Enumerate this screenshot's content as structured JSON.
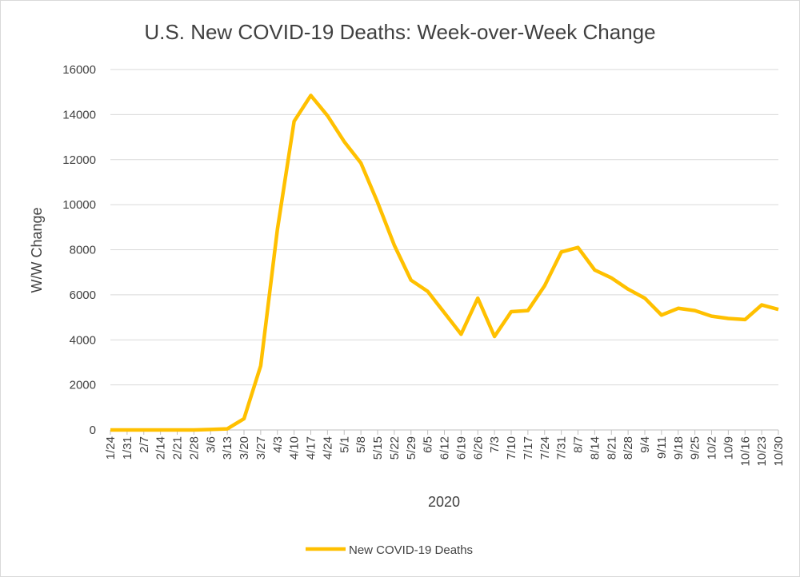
{
  "chart_data": {
    "type": "line",
    "title": "U.S. New COVID-19 Deaths: Week-over-Week Change",
    "x_label": "2020",
    "y_label": "W/W Change",
    "categories": [
      "1/24",
      "1/31",
      "2/7",
      "2/14",
      "2/21",
      "2/28",
      "3/6",
      "3/13",
      "3/20",
      "3/27",
      "4/3",
      "4/10",
      "4/17",
      "4/24",
      "5/1",
      "5/8",
      "5/15",
      "5/22",
      "5/29",
      "6/5",
      "6/12",
      "6/19",
      "6/26",
      "7/3",
      "7/10",
      "7/17",
      "7/24",
      "7/31",
      "8/7",
      "8/14",
      "8/21",
      "8/28",
      "9/4",
      "9/11",
      "9/18",
      "9/25",
      "10/2",
      "10/9",
      "10/16",
      "10/23",
      "10/30"
    ],
    "series": [
      {
        "name": "New COVID-19 Deaths",
        "color": "#ffc000",
        "values": [
          0,
          0,
          0,
          0,
          0,
          0,
          20,
          50,
          500,
          2850,
          8900,
          13700,
          14850,
          13950,
          12800,
          11850,
          10100,
          8200,
          6650,
          6150,
          5200,
          4250,
          5850,
          4150,
          5250,
          5300,
          6400,
          7900,
          8100,
          7100,
          6750,
          6250,
          5850,
          5100,
          5400,
          5300,
          5050,
          4950,
          4900,
          5550,
          5350
        ]
      }
    ],
    "ylim": [
      0,
      16000
    ],
    "yticks": [
      0,
      2000,
      4000,
      6000,
      8000,
      10000,
      12000,
      14000,
      16000
    ],
    "grid": true,
    "legend": "bottom"
  }
}
